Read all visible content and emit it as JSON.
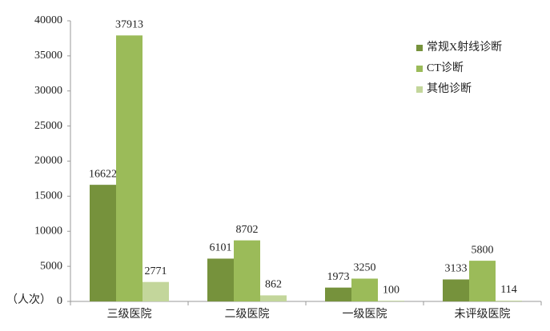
{
  "chart_data": {
    "type": "bar",
    "y_label": "（人次）",
    "categories": [
      "三级医院",
      "二级医院",
      "一级医院",
      "未评级医院"
    ],
    "series": [
      {
        "name": "常规X射线诊断",
        "color": "#76923c",
        "values": [
          16622,
          6101,
          1973,
          3133
        ]
      },
      {
        "name": "CT诊断",
        "color": "#9bbb59",
        "values": [
          37913,
          8702,
          3250,
          5800
        ]
      },
      {
        "name": "其他诊断",
        "color": "#c3d69b",
        "values": [
          2771,
          862,
          100,
          114
        ]
      }
    ],
    "ylim": [
      0,
      40000
    ],
    "yticks": [
      0,
      5000,
      10000,
      15000,
      20000,
      25000,
      30000,
      35000,
      40000
    ],
    "legend": "top-right"
  }
}
